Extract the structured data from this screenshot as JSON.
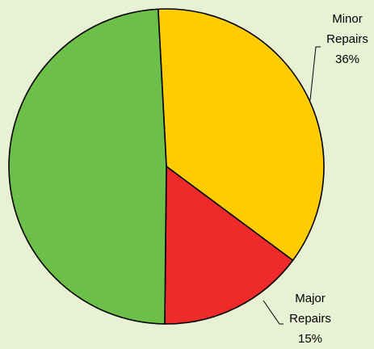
{
  "chart_data": {
    "type": "pie",
    "start_angle_deg": -3,
    "slices": [
      {
        "label_lines": [
          "Minor",
          "Repairs"
        ],
        "percent_label": "36%",
        "value": 36,
        "color": "#ffcc00"
      },
      {
        "label_lines": [
          "Major",
          "Repairs"
        ],
        "percent_label": "15%",
        "value": 15,
        "color": "#ee2a2a"
      },
      {
        "label_lines": [],
        "percent_label": "",
        "value": 49,
        "color": "#6cbf48"
      }
    ]
  }
}
